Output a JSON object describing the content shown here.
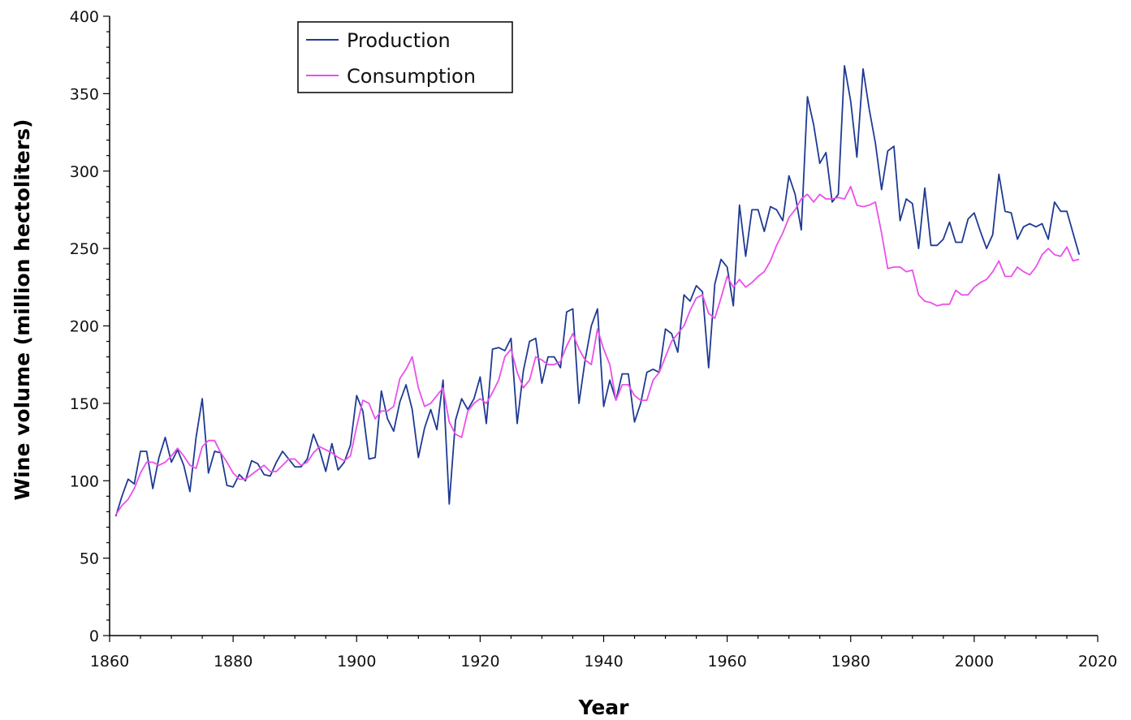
{
  "chart_data": {
    "type": "line",
    "title": "",
    "xlabel": "Year",
    "ylabel": "Wine volume (million hectoliters)",
    "xlim": [
      1860,
      2020
    ],
    "ylim": [
      0,
      400
    ],
    "x_ticks": [
      1860,
      1880,
      1900,
      1920,
      1940,
      1960,
      1980,
      2000,
      2020
    ],
    "y_ticks": [
      0,
      50,
      100,
      150,
      200,
      250,
      300,
      350,
      400
    ],
    "legend_position": "top-left",
    "series": [
      {
        "name": "Production",
        "color": "#1f3a93",
        "x": [
          1861,
          1862,
          1863,
          1864,
          1865,
          1866,
          1867,
          1868,
          1869,
          1870,
          1871,
          1872,
          1873,
          1874,
          1875,
          1876,
          1877,
          1878,
          1879,
          1880,
          1881,
          1882,
          1883,
          1884,
          1885,
          1886,
          1887,
          1888,
          1889,
          1890,
          1891,
          1892,
          1893,
          1894,
          1895,
          1896,
          1897,
          1898,
          1899,
          1900,
          1901,
          1902,
          1903,
          1904,
          1905,
          1906,
          1907,
          1908,
          1909,
          1910,
          1911,
          1912,
          1913,
          1914,
          1915,
          1916,
          1917,
          1918,
          1919,
          1920,
          1921,
          1922,
          1923,
          1924,
          1925,
          1926,
          1927,
          1928,
          1929,
          1930,
          1931,
          1932,
          1933,
          1934,
          1935,
          1936,
          1937,
          1938,
          1939,
          1940,
          1941,
          1942,
          1943,
          1944,
          1945,
          1946,
          1947,
          1948,
          1949,
          1950,
          1951,
          1952,
          1953,
          1954,
          1955,
          1956,
          1957,
          1958,
          1959,
          1960,
          1961,
          1962,
          1963,
          1964,
          1965,
          1966,
          1967,
          1968,
          1969,
          1970,
          1971,
          1972,
          1973,
          1974,
          1975,
          1976,
          1977,
          1978,
          1979,
          1980,
          1981,
          1982,
          1983,
          1984,
          1985,
          1986,
          1987,
          1988,
          1989,
          1990,
          1991,
          1992,
          1993,
          1994,
          1995,
          1996,
          1997,
          1998,
          1999,
          2000,
          2001,
          2002,
          2003,
          2004,
          2005,
          2006,
          2007,
          2008,
          2009,
          2010,
          2011,
          2012,
          2013,
          2014,
          2015,
          2016,
          2017
        ],
        "values": [
          77,
          90,
          101,
          98,
          119,
          119,
          95,
          115,
          128,
          112,
          120,
          110,
          93,
          128,
          153,
          105,
          119,
          118,
          97,
          96,
          104,
          100,
          113,
          111,
          104,
          103,
          112,
          119,
          114,
          109,
          109,
          114,
          130,
          120,
          106,
          124,
          107,
          112,
          123,
          155,
          145,
          114,
          115,
          158,
          140,
          132,
          151,
          162,
          146,
          115,
          134,
          146,
          133,
          165,
          85,
          139,
          153,
          146,
          153,
          167,
          137,
          185,
          186,
          184,
          192,
          137,
          171,
          190,
          192,
          163,
          180,
          180,
          173,
          209,
          211,
          150,
          178,
          200,
          211,
          148,
          165,
          152,
          169,
          169,
          138,
          150,
          170,
          172,
          170,
          198,
          195,
          183,
          220,
          216,
          226,
          222,
          173,
          227,
          243,
          238,
          213,
          278,
          245,
          275,
          275,
          261,
          277,
          275,
          268,
          297,
          285,
          262,
          348,
          330,
          305,
          312,
          280,
          285,
          368,
          345,
          309,
          366,
          340,
          318,
          288,
          313,
          316,
          268,
          282,
          279,
          250,
          289,
          252,
          252,
          256,
          267,
          254,
          254,
          269,
          273,
          261,
          250,
          259,
          298,
          274,
          273,
          256,
          264,
          266,
          264,
          266,
          256,
          280,
          274,
          274,
          260,
          246
        ]
      },
      {
        "name": "Consumption",
        "color": "#ea50ea",
        "x": [
          1861,
          1862,
          1863,
          1864,
          1865,
          1866,
          1867,
          1868,
          1869,
          1870,
          1871,
          1872,
          1873,
          1874,
          1875,
          1876,
          1877,
          1878,
          1879,
          1880,
          1881,
          1882,
          1883,
          1884,
          1885,
          1886,
          1887,
          1888,
          1889,
          1890,
          1891,
          1892,
          1893,
          1894,
          1895,
          1896,
          1897,
          1898,
          1899,
          1900,
          1901,
          1902,
          1903,
          1904,
          1905,
          1906,
          1907,
          1908,
          1909,
          1910,
          1911,
          1912,
          1913,
          1914,
          1915,
          1916,
          1917,
          1918,
          1919,
          1920,
          1921,
          1922,
          1923,
          1924,
          1925,
          1926,
          1927,
          1928,
          1929,
          1930,
          1931,
          1932,
          1933,
          1934,
          1935,
          1936,
          1937,
          1938,
          1939,
          1940,
          1941,
          1942,
          1943,
          1944,
          1945,
          1946,
          1947,
          1948,
          1949,
          1950,
          1951,
          1952,
          1953,
          1954,
          1955,
          1956,
          1957,
          1958,
          1959,
          1960,
          1961,
          1962,
          1963,
          1964,
          1965,
          1966,
          1967,
          1968,
          1969,
          1970,
          1971,
          1972,
          1973,
          1974,
          1975,
          1976,
          1977,
          1978,
          1979,
          1980,
          1981,
          1982,
          1983,
          1984,
          1985,
          1986,
          1987,
          1988,
          1989,
          1990,
          1991,
          1992,
          1993,
          1994,
          1995,
          1996,
          1997,
          1998,
          1999,
          2000,
          2001,
          2002,
          2003,
          2004,
          2005,
          2006,
          2007,
          2008,
          2009,
          2010,
          2011,
          2012,
          2013,
          2014,
          2015,
          2016,
          2017
        ],
        "values": [
          78,
          84,
          88,
          95,
          105,
          112,
          112,
          110,
          112,
          116,
          121,
          116,
          110,
          108,
          122,
          126,
          126,
          118,
          112,
          105,
          101,
          101,
          104,
          107,
          110,
          106,
          106,
          110,
          114,
          114,
          110,
          112,
          118,
          122,
          120,
          118,
          115,
          113,
          116,
          135,
          152,
          150,
          140,
          145,
          145,
          148,
          166,
          172,
          180,
          160,
          148,
          150,
          155,
          160,
          138,
          130,
          128,
          145,
          150,
          153,
          150,
          157,
          165,
          180,
          185,
          170,
          160,
          165,
          180,
          178,
          175,
          175,
          177,
          187,
          195,
          185,
          178,
          175,
          198,
          185,
          175,
          152,
          162,
          162,
          155,
          152,
          152,
          165,
          170,
          180,
          190,
          195,
          200,
          210,
          218,
          220,
          208,
          205,
          218,
          232,
          225,
          230,
          225,
          228,
          232,
          235,
          242,
          252,
          260,
          270,
          275,
          282,
          285,
          280,
          285,
          282,
          282,
          283,
          282,
          290,
          278,
          277,
          278,
          280,
          260,
          237,
          238,
          238,
          235,
          236,
          220,
          216,
          215,
          213,
          214,
          214,
          223,
          220,
          220,
          225,
          228,
          230,
          235,
          242,
          232,
          232,
          238,
          235,
          233,
          238,
          246,
          250,
          246,
          245,
          251,
          242,
          243
        ]
      }
    ]
  }
}
